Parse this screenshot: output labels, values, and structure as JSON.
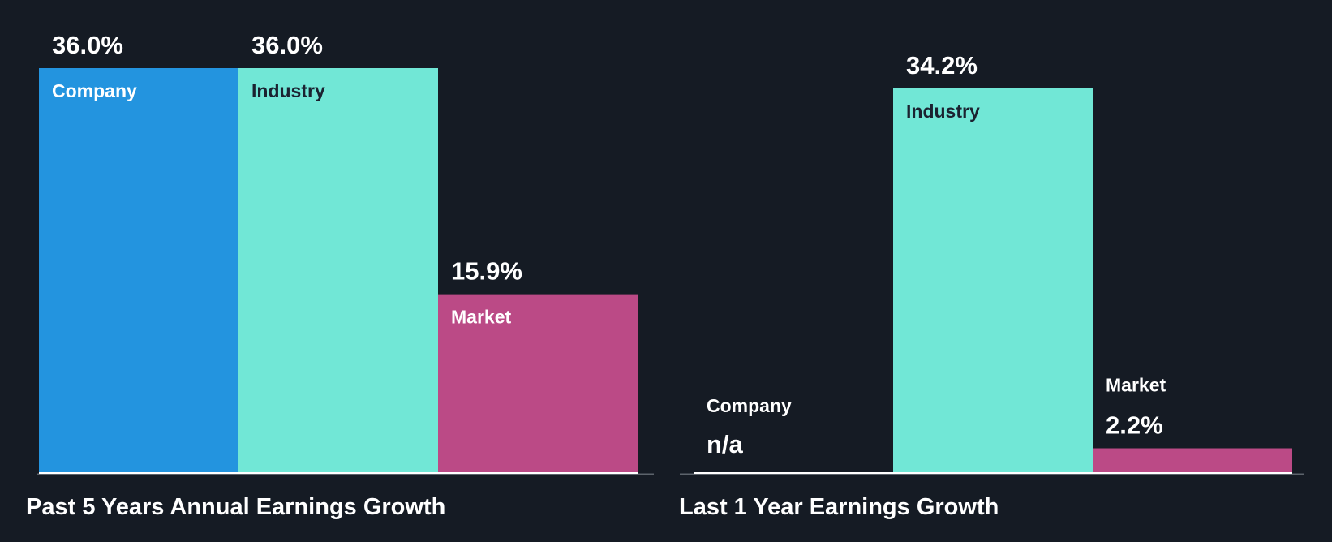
{
  "chart_data": [
    {
      "type": "bar",
      "title": "Past 5 Years Annual Earnings Growth",
      "categories": [
        "Company",
        "Industry",
        "Market"
      ],
      "values": [
        36.0,
        36.0,
        15.9
      ],
      "value_labels": [
        "36.0%",
        "36.0%",
        "15.9%"
      ],
      "colors": [
        "#2394df",
        "#71e7d6",
        "#bb4a86"
      ],
      "ylim": [
        0,
        36.0
      ],
      "xlabel": "",
      "ylabel": "",
      "grid": false
    },
    {
      "type": "bar",
      "title": "Last 1 Year Earnings Growth",
      "categories": [
        "Company",
        "Industry",
        "Market"
      ],
      "values": [
        null,
        34.2,
        2.2
      ],
      "value_labels": [
        "n/a",
        "34.2%",
        "2.2%"
      ],
      "colors": [
        "#2394df",
        "#71e7d6",
        "#bb4a86"
      ],
      "na_color": "#e84646",
      "ylim": [
        0,
        36.0
      ],
      "xlabel": "",
      "ylabel": "",
      "grid": false
    }
  ],
  "colors": {
    "background": "#151b24",
    "axis": "#5c636b",
    "baseline": "#ffffff",
    "label_on_light": "#1b2230",
    "label_on_dark": "#ffffff"
  }
}
